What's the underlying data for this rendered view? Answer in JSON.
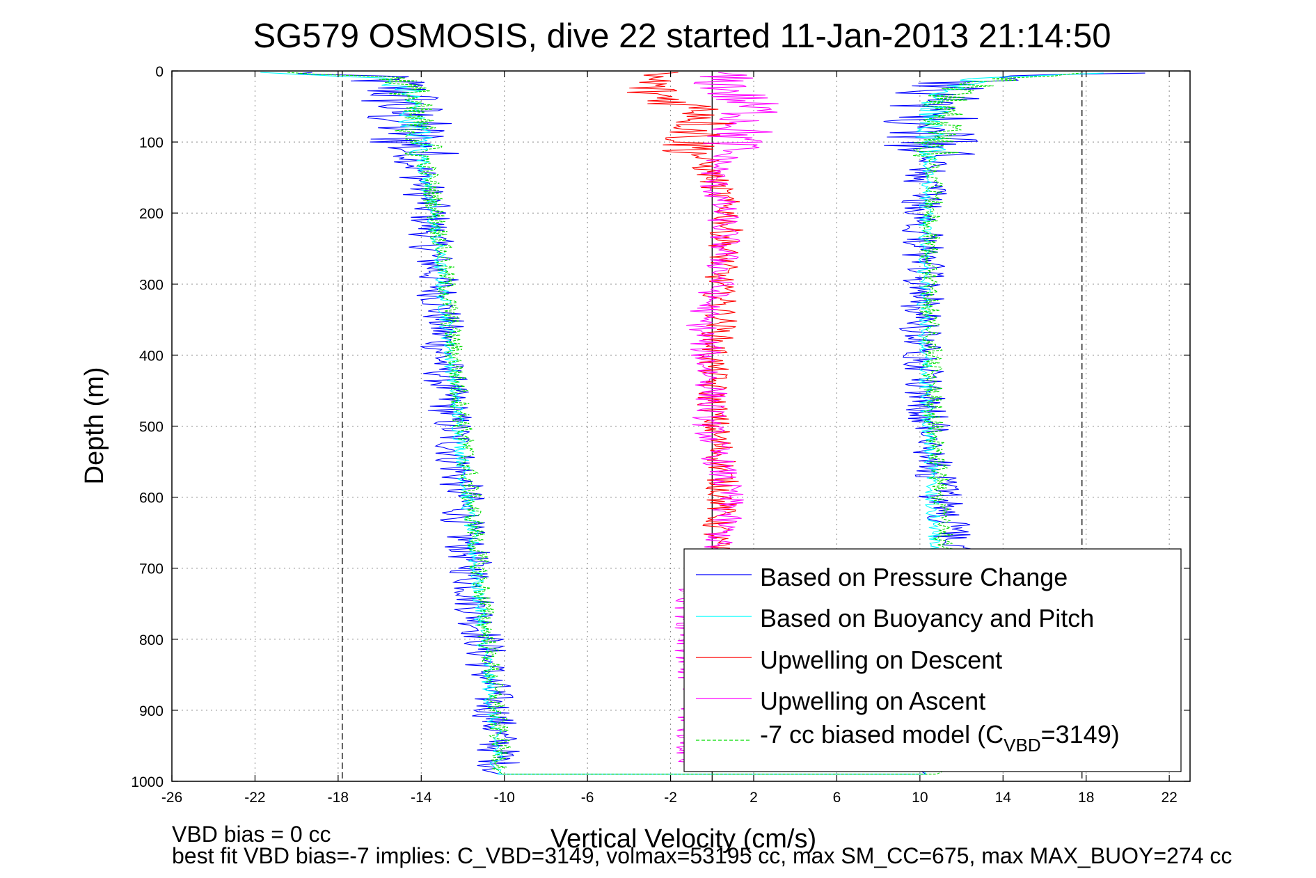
{
  "chart_data": {
    "type": "line",
    "title": "SG579 OSMOSIS, dive 22 started 11-Jan-2013 21:14:50",
    "xlabel": "Vertical Velocity (cm/s)",
    "ylabel": "Depth (m)",
    "xlim": [
      -26,
      23
    ],
    "ylim": [
      0,
      1000
    ],
    "y_reversed": true,
    "grid": true,
    "x_ticks": [
      -26,
      -22,
      -18,
      -14,
      -10,
      -6,
      -2,
      2,
      6,
      10,
      14,
      18,
      22
    ],
    "y_ticks": [
      0,
      100,
      200,
      300,
      400,
      500,
      600,
      700,
      800,
      900,
      1000
    ],
    "reference_lines": [
      {
        "x": -17.8,
        "style": "dashed"
      },
      {
        "x": 17.8,
        "style": "dashed"
      },
      {
        "x": 0,
        "style": "solid"
      }
    ],
    "legend_position": "bottom-right",
    "legend": {
      "pressure_label": "Based on Pressure Change",
      "buoyancy_label": "Based on Buoyancy and Pitch",
      "descent_label": "Upwelling on Descent",
      "ascent_label": "Upwelling on Ascent",
      "model_label_prefix": "-7 cc biased model (C",
      "model_label_sub": "VBD",
      "model_label_suffix": "=3149)"
    },
    "annotations": {
      "vbd_bias": "VBD bias = 0 cc",
      "best_fit": "best fit VBD bias=-7 implies: C_VBD=3149, volmax=53195 cc, max SM_CC=675, max MAX_BUOY=274 cc"
    },
    "series": [
      {
        "name": "Based on Pressure Change",
        "color": "#0000ff",
        "noise": 1.1,
        "descent": [
          [
            2,
            -20
          ],
          [
            10,
            -16
          ],
          [
            30,
            -15
          ],
          [
            60,
            -15
          ],
          [
            100,
            -14.5
          ],
          [
            150,
            -14
          ],
          [
            200,
            -13.6
          ],
          [
            250,
            -13.5
          ],
          [
            300,
            -13.2
          ],
          [
            350,
            -13
          ],
          [
            400,
            -13
          ],
          [
            450,
            -12.8
          ],
          [
            500,
            -12.5
          ],
          [
            550,
            -12.3
          ],
          [
            600,
            -12
          ],
          [
            650,
            -12
          ],
          [
            700,
            -11.6
          ],
          [
            750,
            -11.4
          ],
          [
            800,
            -11
          ],
          [
            850,
            -10.8
          ],
          [
            900,
            -10.5
          ],
          [
            950,
            -10.3
          ],
          [
            985,
            -10.2
          ]
        ],
        "ascent": [
          [
            985,
            10.3
          ],
          [
            950,
            10.3
          ],
          [
            900,
            10.5
          ],
          [
            850,
            10.8
          ],
          [
            800,
            10.8
          ],
          [
            750,
            11
          ],
          [
            700,
            11.5
          ],
          [
            650,
            11.5
          ],
          [
            600,
            11
          ],
          [
            550,
            10.8
          ],
          [
            500,
            10.5
          ],
          [
            450,
            10.3
          ],
          [
            400,
            10.3
          ],
          [
            350,
            10
          ],
          [
            300,
            10.2
          ],
          [
            250,
            10.2
          ],
          [
            200,
            10.2
          ],
          [
            150,
            10.2
          ],
          [
            100,
            10.5
          ],
          [
            60,
            10.5
          ],
          [
            30,
            11
          ],
          [
            10,
            13
          ],
          [
            2,
            20
          ]
        ]
      },
      {
        "name": "Based on Buoyancy and Pitch",
        "color": "#00ffff",
        "noise": 0.35,
        "descent": [
          [
            2,
            -22
          ],
          [
            10,
            -16
          ],
          [
            30,
            -14.5
          ],
          [
            60,
            -14.5
          ],
          [
            100,
            -14
          ],
          [
            150,
            -13.8
          ],
          [
            200,
            -13.5
          ],
          [
            250,
            -13.2
          ],
          [
            300,
            -13
          ],
          [
            350,
            -12.8
          ],
          [
            400,
            -12.6
          ],
          [
            450,
            -12.4
          ],
          [
            500,
            -12.2
          ],
          [
            550,
            -12
          ],
          [
            600,
            -11.8
          ],
          [
            650,
            -11.6
          ],
          [
            700,
            -11.4
          ],
          [
            750,
            -11.2
          ],
          [
            800,
            -11
          ],
          [
            850,
            -10.8
          ],
          [
            900,
            -10.6
          ],
          [
            950,
            -10.4
          ],
          [
            985,
            -10.3
          ]
        ],
        "ascent": [
          [
            985,
            10.3
          ],
          [
            950,
            10.3
          ],
          [
            900,
            10.4
          ],
          [
            850,
            10.5
          ],
          [
            800,
            10.6
          ],
          [
            750,
            10.7
          ],
          [
            700,
            10.8
          ],
          [
            650,
            10.7
          ],
          [
            600,
            10.6
          ],
          [
            550,
            10.5
          ],
          [
            500,
            10.4
          ],
          [
            450,
            10.3
          ],
          [
            400,
            10.3
          ],
          [
            350,
            10.2
          ],
          [
            300,
            10.2
          ],
          [
            250,
            10.2
          ],
          [
            200,
            10.3
          ],
          [
            150,
            10.4
          ],
          [
            100,
            10.5
          ],
          [
            60,
            10.6
          ],
          [
            30,
            11
          ],
          [
            10,
            13
          ],
          [
            2,
            19
          ]
        ]
      },
      {
        "name": "Upwelling on Descent",
        "color": "#ff0000",
        "noise": 0.8,
        "profile": [
          [
            2,
            -3
          ],
          [
            30,
            -3
          ],
          [
            60,
            0
          ],
          [
            100,
            -1
          ],
          [
            150,
            0
          ],
          [
            200,
            0.8
          ],
          [
            250,
            0.6
          ],
          [
            300,
            0.3
          ],
          [
            350,
            0.5
          ],
          [
            400,
            0
          ],
          [
            450,
            0
          ],
          [
            500,
            0.1
          ],
          [
            550,
            0.5
          ],
          [
            600,
            0.5
          ],
          [
            650,
            0.2
          ],
          [
            700,
            0
          ],
          [
            750,
            0
          ],
          [
            800,
            0
          ],
          [
            850,
            0
          ],
          [
            900,
            0
          ],
          [
            950,
            0
          ],
          [
            985,
            0
          ]
        ]
      },
      {
        "name": "Upwelling on Ascent",
        "color": "#ff00ff",
        "noise": 0.8,
        "profile": [
          [
            2,
            0
          ],
          [
            30,
            1
          ],
          [
            60,
            2
          ],
          [
            100,
            1
          ],
          [
            150,
            0
          ],
          [
            200,
            0.5
          ],
          [
            250,
            0.6
          ],
          [
            300,
            0.3
          ],
          [
            350,
            -0.5
          ],
          [
            400,
            -0.3
          ],
          [
            450,
            0
          ],
          [
            500,
            -0.2
          ],
          [
            550,
            0.3
          ],
          [
            600,
            0.8
          ],
          [
            650,
            0.5
          ],
          [
            700,
            -0.5
          ],
          [
            750,
            -1
          ],
          [
            800,
            -1
          ],
          [
            850,
            -1
          ],
          [
            900,
            -1
          ],
          [
            950,
            -1
          ],
          [
            985,
            -1
          ]
        ]
      },
      {
        "name": "-7 cc biased model (CVBD=3149)",
        "color": "#00dd00",
        "noise": 0.5,
        "dashed": true,
        "descent": [
          [
            2,
            -20
          ],
          [
            10,
            -15
          ],
          [
            30,
            -14.5
          ],
          [
            60,
            -14.5
          ],
          [
            100,
            -14
          ],
          [
            150,
            -13.6
          ],
          [
            200,
            -13.3
          ],
          [
            250,
            -13
          ],
          [
            300,
            -12.8
          ],
          [
            350,
            -12.6
          ],
          [
            400,
            -12.4
          ],
          [
            450,
            -12.2
          ],
          [
            500,
            -12
          ],
          [
            550,
            -11.8
          ],
          [
            600,
            -11.6
          ],
          [
            650,
            -11.4
          ],
          [
            700,
            -11.2
          ],
          [
            750,
            -11
          ],
          [
            800,
            -10.8
          ],
          [
            850,
            -10.6
          ],
          [
            900,
            -10.4
          ],
          [
            950,
            -10.2
          ],
          [
            985,
            -10.1
          ]
        ],
        "ascent": [
          [
            985,
            10.8
          ],
          [
            950,
            10.8
          ],
          [
            900,
            10.9
          ],
          [
            850,
            11
          ],
          [
            800,
            11.1
          ],
          [
            750,
            11.2
          ],
          [
            700,
            11.2
          ],
          [
            650,
            11.1
          ],
          [
            600,
            11
          ],
          [
            550,
            10.8
          ],
          [
            500,
            10.7
          ],
          [
            450,
            10.6
          ],
          [
            400,
            10.6
          ],
          [
            350,
            10.5
          ],
          [
            300,
            10.5
          ],
          [
            250,
            10.5
          ],
          [
            200,
            10.6
          ],
          [
            150,
            10.7
          ],
          [
            100,
            10.8
          ],
          [
            60,
            11
          ],
          [
            30,
            11.5
          ],
          [
            10,
            14
          ],
          [
            2,
            19
          ]
        ]
      }
    ]
  }
}
